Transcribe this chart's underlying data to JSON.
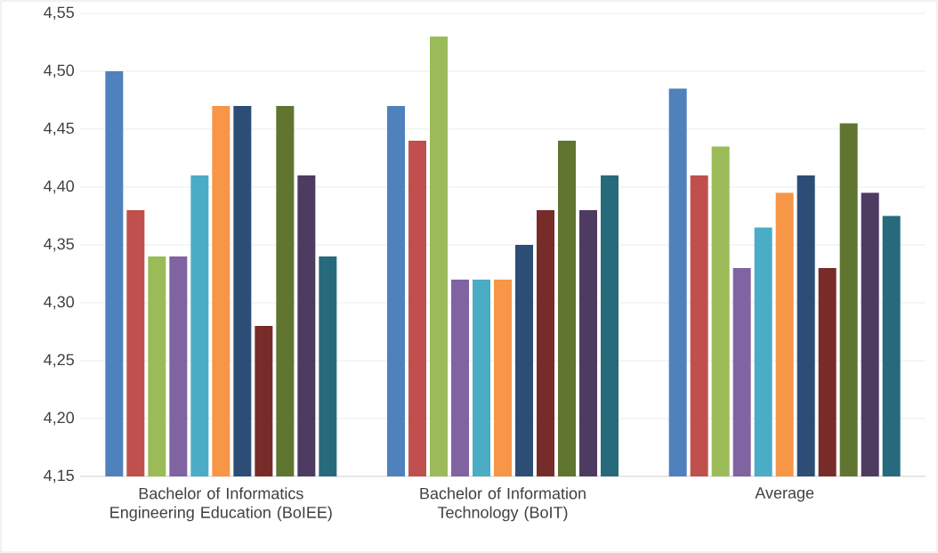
{
  "chart_data": {
    "type": "bar",
    "categories": [
      "Bachelor of Informatics Engineering Education (BoIEE)",
      "Bachelor of Information Technology (BoIT)",
      "Average"
    ],
    "series": [
      {
        "color": "#4f81bd",
        "values": [
          4.5,
          4.47,
          4.485
        ]
      },
      {
        "color": "#c0504d",
        "values": [
          4.38,
          4.44,
          4.41
        ]
      },
      {
        "color": "#9bbb59",
        "values": [
          4.34,
          4.53,
          4.435
        ]
      },
      {
        "color": "#8064a2",
        "values": [
          4.34,
          4.32,
          4.33
        ]
      },
      {
        "color": "#4bacc6",
        "values": [
          4.41,
          4.32,
          4.365
        ]
      },
      {
        "color": "#f79646",
        "values": [
          4.47,
          4.32,
          4.395
        ]
      },
      {
        "color": "#2c4d75",
        "values": [
          4.47,
          4.35,
          4.41
        ]
      },
      {
        "color": "#772c2a",
        "values": [
          4.28,
          4.38,
          4.33
        ]
      },
      {
        "color": "#5f7530",
        "values": [
          4.47,
          4.44,
          4.455
        ]
      },
      {
        "color": "#4d3b62",
        "values": [
          4.41,
          4.38,
          4.395
        ]
      },
      {
        "color": "#276a7c",
        "values": [
          4.34,
          4.41,
          4.375
        ]
      }
    ],
    "ylim": [
      4.15,
      4.55
    ],
    "yticks": [
      {
        "value": 4.15,
        "label": "4,15"
      },
      {
        "value": 4.2,
        "label": "4,20"
      },
      {
        "value": 4.25,
        "label": "4,25"
      },
      {
        "value": 4.3,
        "label": "4,30"
      },
      {
        "value": 4.35,
        "label": "4,35"
      },
      {
        "value": 4.4,
        "label": "4,40"
      },
      {
        "value": 4.45,
        "label": "4,45"
      },
      {
        "value": 4.5,
        "label": "4,50"
      },
      {
        "value": 4.55,
        "label": "4,55"
      }
    ],
    "grid": "y"
  }
}
